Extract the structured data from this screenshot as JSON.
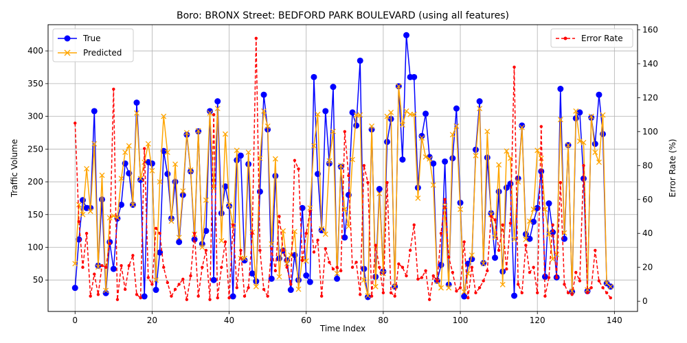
{
  "chart_data": {
    "type": "line",
    "title": "Boro: BRONX Street: BEDFORD PARK BOULEVARD (using all features)",
    "xlabel": "Time Index",
    "ylabel": "Traffic Volume",
    "y2label": "Error Rate (%)",
    "xlim": [
      -7,
      146
    ],
    "ylim": [
      2,
      440
    ],
    "y2lim": [
      -6,
      163
    ],
    "x_ticks": [
      0,
      20,
      40,
      60,
      80,
      100,
      120,
      140
    ],
    "y_ticks": [
      50,
      100,
      150,
      200,
      250,
      300,
      350,
      400
    ],
    "y2_ticks": [
      0,
      20,
      40,
      60,
      80,
      100,
      120,
      140,
      160
    ],
    "grid": true,
    "legend_left_placement": "upper-left",
    "legend_right_placement": "upper-right",
    "series": [
      {
        "name": "True",
        "axis": "left",
        "color": "#0000ff",
        "marker": "circle",
        "values": [
          38,
          112,
          172,
          160,
          160,
          308,
          72,
          173,
          30,
          108,
          67,
          144,
          165,
          228,
          213,
          165,
          321,
          203,
          25,
          230,
          228,
          35,
          92,
          247,
          212,
          144,
          200,
          108,
          180,
          272,
          216,
          112,
          277,
          105,
          125,
          308,
          50,
          323,
          152,
          193,
          163,
          25,
          233,
          240,
          80,
          227,
          60,
          48,
          185,
          333,
          280,
          52,
          209,
          83,
          95,
          80,
          35,
          88,
          50,
          160,
          57,
          47,
          360,
          212,
          126,
          308,
          228,
          345,
          52,
          223,
          115,
          180,
          306,
          286,
          385,
          67,
          24,
          280,
          55,
          189,
          63,
          261,
          296,
          40,
          346,
          234,
          424,
          360,
          360,
          191,
          270,
          304,
          238,
          228,
          49,
          73,
          231,
          43,
          236,
          312,
          168,
          25,
          75,
          82,
          249,
          323,
          76,
          237,
          152,
          84,
          185,
          63,
          191,
          197,
          26,
          205,
          286,
          120,
          113,
          139,
          160,
          216,
          55,
          167,
          123,
          54,
          342,
          113,
          256,
          32,
          297,
          306,
          205,
          33,
          298,
          258,
          333,
          273,
          45,
          40
        ]
      },
      {
        "name": "Predicted",
        "axis": "left",
        "color": "#ffa500",
        "marker": "x",
        "values": [
          75,
          165,
          150,
          220,
          155,
          258,
          70,
          210,
          34,
          145,
          148,
          145,
          205,
          245,
          255,
          165,
          305,
          205,
          230,
          258,
          217,
          50,
          200,
          300,
          245,
          140,
          227,
          115,
          186,
          275,
          218,
          120,
          278,
          100,
          172,
          305,
          190,
          312,
          110,
          273,
          165,
          133,
          248,
          83,
          83,
          245,
          123,
          40,
          236,
          308,
          285,
          105,
          235,
          55,
          125,
          75,
          88,
          124,
          36,
          83,
          79,
          160,
          255,
          303,
          128,
          120,
          232,
          277,
          60,
          225,
          158,
          132,
          234,
          302,
          302,
          50,
          26,
          285,
          40,
          182,
          60,
          300,
          306,
          40,
          346,
          287,
          308,
          303,
          303,
          175,
          267,
          238,
          235,
          195,
          48,
          38,
          163,
          38,
          272,
          285,
          158,
          32,
          60,
          88,
          240,
          312,
          75,
          277,
          150,
          115,
          226,
          43,
          247,
          236,
          112,
          200,
          283,
          112,
          140,
          158,
          248,
          236,
          158,
          120,
          82,
          89,
          295,
          122,
          256,
          33,
          308,
          262,
          260,
          35,
          300,
          245,
          230,
          302,
          45,
          40
        ]
      },
      {
        "name": "Error Rate",
        "axis": "right",
        "color": "#ff0000",
        "style": "dashed",
        "marker": "dot",
        "values": [
          105,
          47,
          20,
          40,
          3,
          16,
          4,
          21,
          20,
          34,
          125,
          1,
          21,
          7,
          21,
          27,
          4,
          2,
          90,
          14,
          10,
          43,
          40,
          20,
          11,
          3,
          7,
          10,
          13,
          1,
          15,
          40,
          3,
          20,
          30,
          1,
          110,
          2,
          20,
          35,
          2,
          45,
          8,
          30,
          3,
          8,
          40,
          155,
          30,
          7,
          3,
          31,
          18,
          50,
          30,
          20,
          10,
          83,
          78,
          24,
          40,
          53,
          29,
          36,
          3,
          31,
          23,
          19,
          20,
          18,
          100,
          74,
          20,
          23,
          4,
          80,
          70,
          3,
          33,
          20,
          5,
          70,
          5,
          3,
          22,
          20,
          15,
          30,
          45,
          13,
          14,
          18,
          1,
          15,
          12,
          40,
          60,
          26,
          17,
          6,
          8,
          35,
          2,
          20,
          5,
          8,
          12,
          18,
          50,
          48,
          30,
          45,
          19,
          46,
          138,
          10,
          5,
          33,
          17,
          20,
          5,
          103,
          3,
          14,
          45,
          14,
          70,
          10,
          5,
          4,
          17,
          12,
          80,
          5,
          8,
          30,
          12,
          8,
          5,
          2
        ]
      }
    ]
  }
}
